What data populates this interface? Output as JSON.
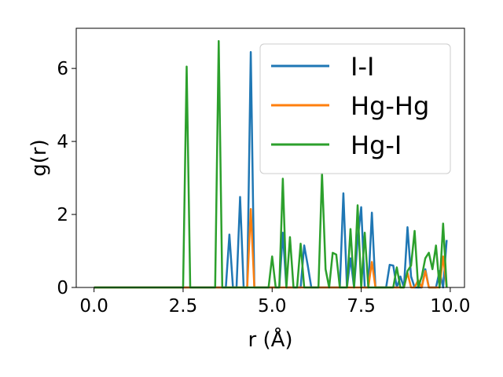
{
  "chart_data": {
    "type": "line",
    "xlabel": "r (Å)",
    "ylabel": "g(r)",
    "xlim": [
      -0.5,
      10.4
    ],
    "ylim": [
      0,
      7.1
    ],
    "xticks": [
      "0.0",
      "2.5",
      "5.0",
      "7.5",
      "10.0"
    ],
    "xtick_values": [
      0,
      2.5,
      5,
      7.5,
      10
    ],
    "yticks": [
      "0",
      "2",
      "4",
      "6"
    ],
    "ytick_values": [
      0,
      2,
      4,
      6
    ],
    "grid": false,
    "legend_position": "top-right",
    "series": [
      {
        "name": "I-I",
        "color": "#1f77b4",
        "x": [
          0.0,
          3.6,
          3.7,
          3.8,
          3.9,
          4.0,
          4.1,
          4.2,
          4.3,
          4.4,
          4.5,
          4.6,
          4.7,
          4.8,
          4.9,
          5.0,
          5.1,
          5.2,
          5.3,
          5.4,
          5.5,
          5.6,
          5.7,
          5.8,
          5.9,
          6.0,
          6.1,
          6.2,
          6.3,
          6.4,
          6.5,
          6.6,
          6.7,
          6.8,
          6.9,
          7.0,
          7.1,
          7.2,
          7.3,
          7.4,
          7.5,
          7.6,
          7.7,
          7.8,
          7.9,
          8.0,
          8.1,
          8.2,
          8.3,
          8.4,
          8.5,
          8.6,
          8.7,
          8.8,
          8.9,
          9.0,
          9.1,
          9.2,
          9.3,
          9.4,
          9.5,
          9.6,
          9.7,
          9.8,
          9.9
        ],
        "y": [
          0,
          0,
          0,
          1.45,
          0,
          0,
          2.48,
          0,
          0,
          6.45,
          0,
          0,
          0,
          0,
          0,
          0,
          0,
          0,
          1.5,
          0,
          0,
          0,
          0,
          0,
          1.15,
          0.6,
          0,
          0,
          0,
          0,
          0,
          0,
          0,
          0,
          0,
          2.58,
          0,
          0.8,
          0,
          1.3,
          2.2,
          0,
          0,
          2.05,
          0,
          0,
          0,
          0,
          0.62,
          0.6,
          0,
          0.3,
          0,
          1.65,
          0.3,
          0,
          0,
          0,
          0.5,
          0,
          0,
          0,
          0.45,
          0,
          1.3
        ]
      },
      {
        "name": "Hg-Hg",
        "color": "#ff7f0e",
        "x": [
          0.0,
          4.2,
          4.3,
          4.4,
          4.5,
          4.6,
          4.7,
          7.5,
          7.6,
          7.7,
          7.8,
          7.9,
          8.0,
          8.6,
          8.7,
          8.8,
          8.9,
          9.0,
          9.1,
          9.2,
          9.3,
          9.4,
          9.5,
          9.6,
          9.7,
          9.8,
          9.9
        ],
        "y": [
          0,
          0,
          0,
          2.15,
          0,
          0,
          0,
          0,
          0,
          0,
          0.7,
          0,
          0,
          0,
          0,
          0.4,
          0,
          0,
          0.2,
          0,
          0.45,
          0,
          0,
          0,
          0,
          0.85,
          0
        ]
      },
      {
        "name": "Hg-I",
        "color": "#2ca02c",
        "x": [
          0.0,
          2.5,
          2.6,
          2.7,
          2.8,
          3.4,
          3.5,
          3.6,
          3.7,
          4.9,
          5.0,
          5.1,
          5.2,
          5.3,
          5.4,
          5.5,
          5.6,
          5.7,
          5.8,
          5.9,
          6.0,
          6.1,
          6.2,
          6.3,
          6.4,
          6.5,
          6.6,
          6.7,
          6.8,
          6.9,
          7.0,
          7.1,
          7.2,
          7.3,
          7.4,
          7.5,
          7.6,
          7.7,
          7.8,
          7.9,
          8.0,
          8.1,
          8.2,
          8.3,
          8.4,
          8.5,
          8.6,
          8.7,
          8.8,
          8.9,
          9.0,
          9.1,
          9.2,
          9.3,
          9.4,
          9.5,
          9.6,
          9.7,
          9.8,
          9.9
        ],
        "y": [
          0,
          0,
          6.05,
          0,
          0,
          0,
          6.75,
          0,
          0,
          0,
          0.85,
          0,
          0,
          2.98,
          0,
          1.38,
          0,
          0,
          1.2,
          0,
          0,
          0,
          0,
          0,
          3.12,
          0.5,
          0,
          0.95,
          0.9,
          0,
          0,
          0,
          1.6,
          0,
          2.25,
          0,
          1.5,
          0,
          0,
          0,
          0,
          0,
          0,
          0,
          0,
          0.55,
          0,
          0,
          0.45,
          0.6,
          1.55,
          0,
          0.3,
          0.8,
          0.95,
          0.5,
          1.15,
          0,
          1.75,
          0
        ]
      }
    ]
  }
}
